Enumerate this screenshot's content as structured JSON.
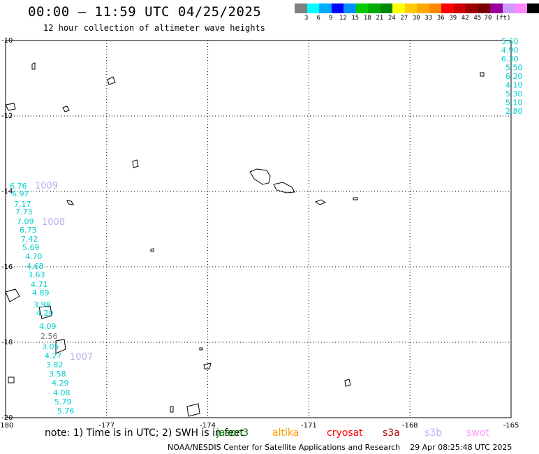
{
  "header": {
    "title": "00:00 — 11:59 UTC 04/25/2025",
    "subtitle": "12 hour collection of altimeter wave heights"
  },
  "color_scale": {
    "colors": [
      "#808080",
      "#00ffff",
      "#00aaff",
      "#0000ff",
      "#0090ff",
      "#00cc00",
      "#00aa00",
      "#008800",
      "#ffff00",
      "#ffcc00",
      "#ffaa00",
      "#ff8800",
      "#ff0000",
      "#cc0000",
      "#990000",
      "#770000",
      "#990099",
      "#cc99ff",
      "#ff88ff",
      "#000000"
    ],
    "labels": [
      "3",
      "6",
      "9",
      "12",
      "15",
      "18",
      "21",
      "24",
      "27",
      "30",
      "33",
      "36",
      "39",
      "42",
      "45",
      "70 (ft)"
    ]
  },
  "map": {
    "lon_range": [
      -180,
      -165
    ],
    "lat_range": [
      -20,
      -10
    ],
    "lon_ticks": [
      "-180",
      "-177",
      "-174",
      "-171",
      "-168",
      "-165"
    ],
    "lat_ticks": [
      "-10",
      "-12",
      "-14",
      "-16",
      "-18",
      "-20"
    ],
    "track_main": [
      {
        "v": "6.76",
        "c": "#00cccc"
      },
      {
        "v": "6.97",
        "c": "#00cccc"
      },
      {
        "v": "7.17",
        "c": "#00cccc"
      },
      {
        "v": "7.73",
        "c": "#00cccc"
      },
      {
        "v": "7.09",
        "c": "#00cccc"
      },
      {
        "v": "6.73",
        "c": "#00cccc"
      },
      {
        "v": "7.42",
        "c": "#00cccc"
      },
      {
        "v": "5.69",
        "c": "#00cccc"
      },
      {
        "v": "4.70",
        "c": "#00cccc"
      },
      {
        "v": "4.68",
        "c": "#00cccc"
      },
      {
        "v": "3.63",
        "c": "#00cccc"
      },
      {
        "v": "4.71",
        "c": "#00cccc"
      },
      {
        "v": "4.89",
        "c": "#00cccc"
      },
      {
        "v": "3.98",
        "c": "#00cccc"
      },
      {
        "v": "4.29",
        "c": "#00cccc"
      },
      {
        "v": "4.09",
        "c": "#00cccc"
      },
      {
        "v": "2.56",
        "c": "#707070"
      },
      {
        "v": "3.05",
        "c": "#00cccc"
      },
      {
        "v": "4.27",
        "c": "#00cccc"
      },
      {
        "v": "3.82",
        "c": "#00cccc"
      },
      {
        "v": "3.58",
        "c": "#00cccc"
      },
      {
        "v": "4.29",
        "c": "#00cccc"
      },
      {
        "v": "4.08",
        "c": "#00cccc"
      },
      {
        "v": "5.79",
        "c": "#00cccc"
      },
      {
        "v": "5.76",
        "c": "#00cccc"
      }
    ],
    "track_right": [
      "5.60",
      "4.90",
      "6.30",
      "5.50",
      "6.20",
      "4.10",
      "5.30",
      "5.10",
      "2.80"
    ],
    "pressures": [
      "1009",
      "1008",
      "1007"
    ]
  },
  "footer": {
    "note": "note: 1) Time is in UTC; 2) SWH is in feet",
    "satellites": [
      {
        "name": "jason3",
        "color": "#008800"
      },
      {
        "name": "altika",
        "color": "#ff9900"
      },
      {
        "name": "cryosat",
        "color": "#ff0000"
      },
      {
        "name": "s3a",
        "color": "#aa0000"
      },
      {
        "name": "s3b",
        "color": "#ccaaff"
      },
      {
        "name": "swot",
        "color": "#ff99ff"
      }
    ],
    "credit": "NOAA/NESDIS Center for Satellite Applications and Research",
    "timestamp": "29 Apr 08:25:48 UTC 2025"
  }
}
